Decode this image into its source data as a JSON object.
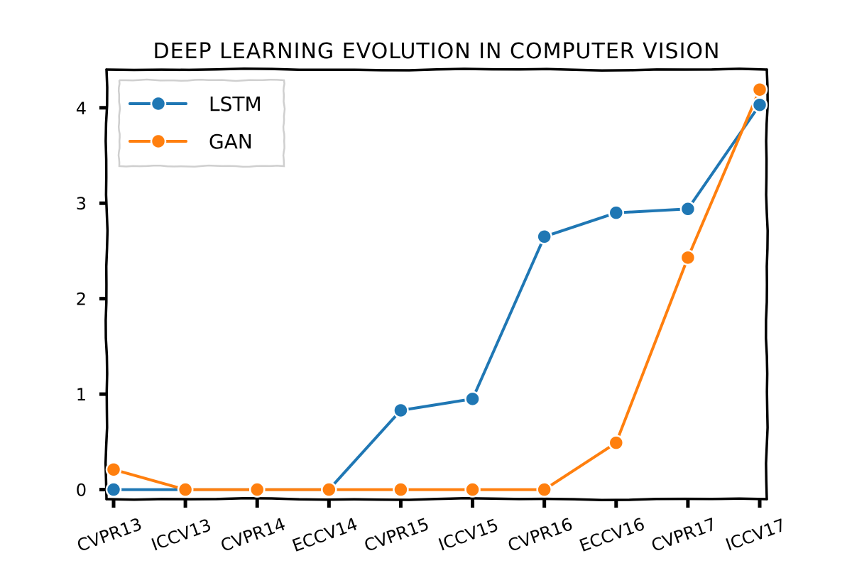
{
  "chart_data": {
    "type": "line",
    "title": "DEEP LEARNING EVOLUTION IN COMPUTER VISION",
    "xlabel": "",
    "ylabel": "",
    "categories": [
      "CVPR13",
      "ICCV13",
      "CVPR14",
      "ECCV14",
      "CVPR15",
      "ICCV15",
      "CVPR16",
      "ECCV16",
      "CVPR17",
      "ICCV17"
    ],
    "series": [
      {
        "name": "LSTM",
        "color": "#1f77b4",
        "values": [
          0.0,
          0.0,
          0.0,
          0.0,
          0.83,
          0.95,
          2.65,
          2.9,
          2.94,
          4.03
        ]
      },
      {
        "name": "GAN",
        "color": "#ff7f0e",
        "values": [
          0.21,
          0.0,
          0.0,
          0.0,
          0.0,
          0.0,
          0.0,
          0.49,
          2.43,
          4.19
        ]
      }
    ],
    "ylim": [
      -0.1,
      4.4
    ],
    "yticks": [
      "0",
      "1",
      "2",
      "3",
      "4"
    ],
    "grid": false,
    "legend": "top-left"
  }
}
